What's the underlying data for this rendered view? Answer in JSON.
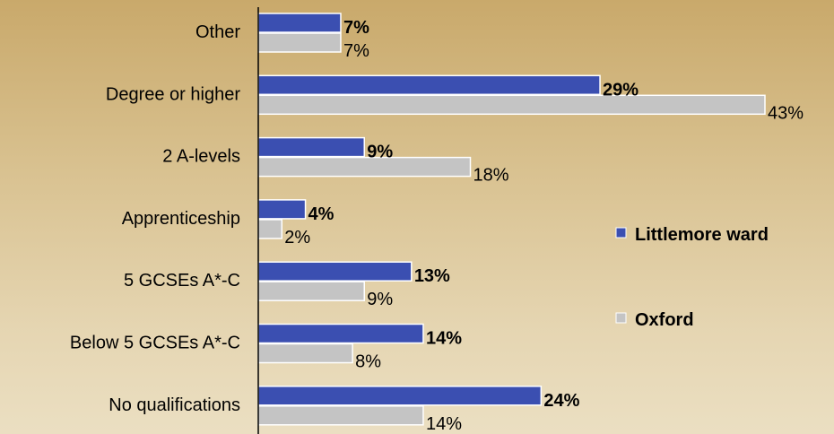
{
  "chart_data": {
    "type": "bar",
    "orientation": "horizontal",
    "categories": [
      "Other",
      "Degree or higher",
      "2 A-levels",
      "Apprenticeship",
      "5 GCSEs A*-C",
      "Below 5 GCSEs A*-C",
      "No qualifications"
    ],
    "series": [
      {
        "name": "Littlemore ward",
        "values": [
          7,
          29,
          9,
          4,
          13,
          14,
          24
        ],
        "labels": [
          "7%",
          "29%",
          "9%",
          "4%",
          "13%",
          "14%",
          "24%"
        ],
        "color": "#3b4fb1"
      },
      {
        "name": "Oxford",
        "values": [
          7,
          43,
          18,
          2,
          9,
          8,
          14
        ],
        "labels": [
          "7%",
          "43%",
          "18%",
          "2%",
          "9%",
          "8%",
          "14%"
        ],
        "color": "#c4c4c4"
      }
    ],
    "xlim": [
      0,
      43
    ],
    "grid": false,
    "legend": "right"
  }
}
